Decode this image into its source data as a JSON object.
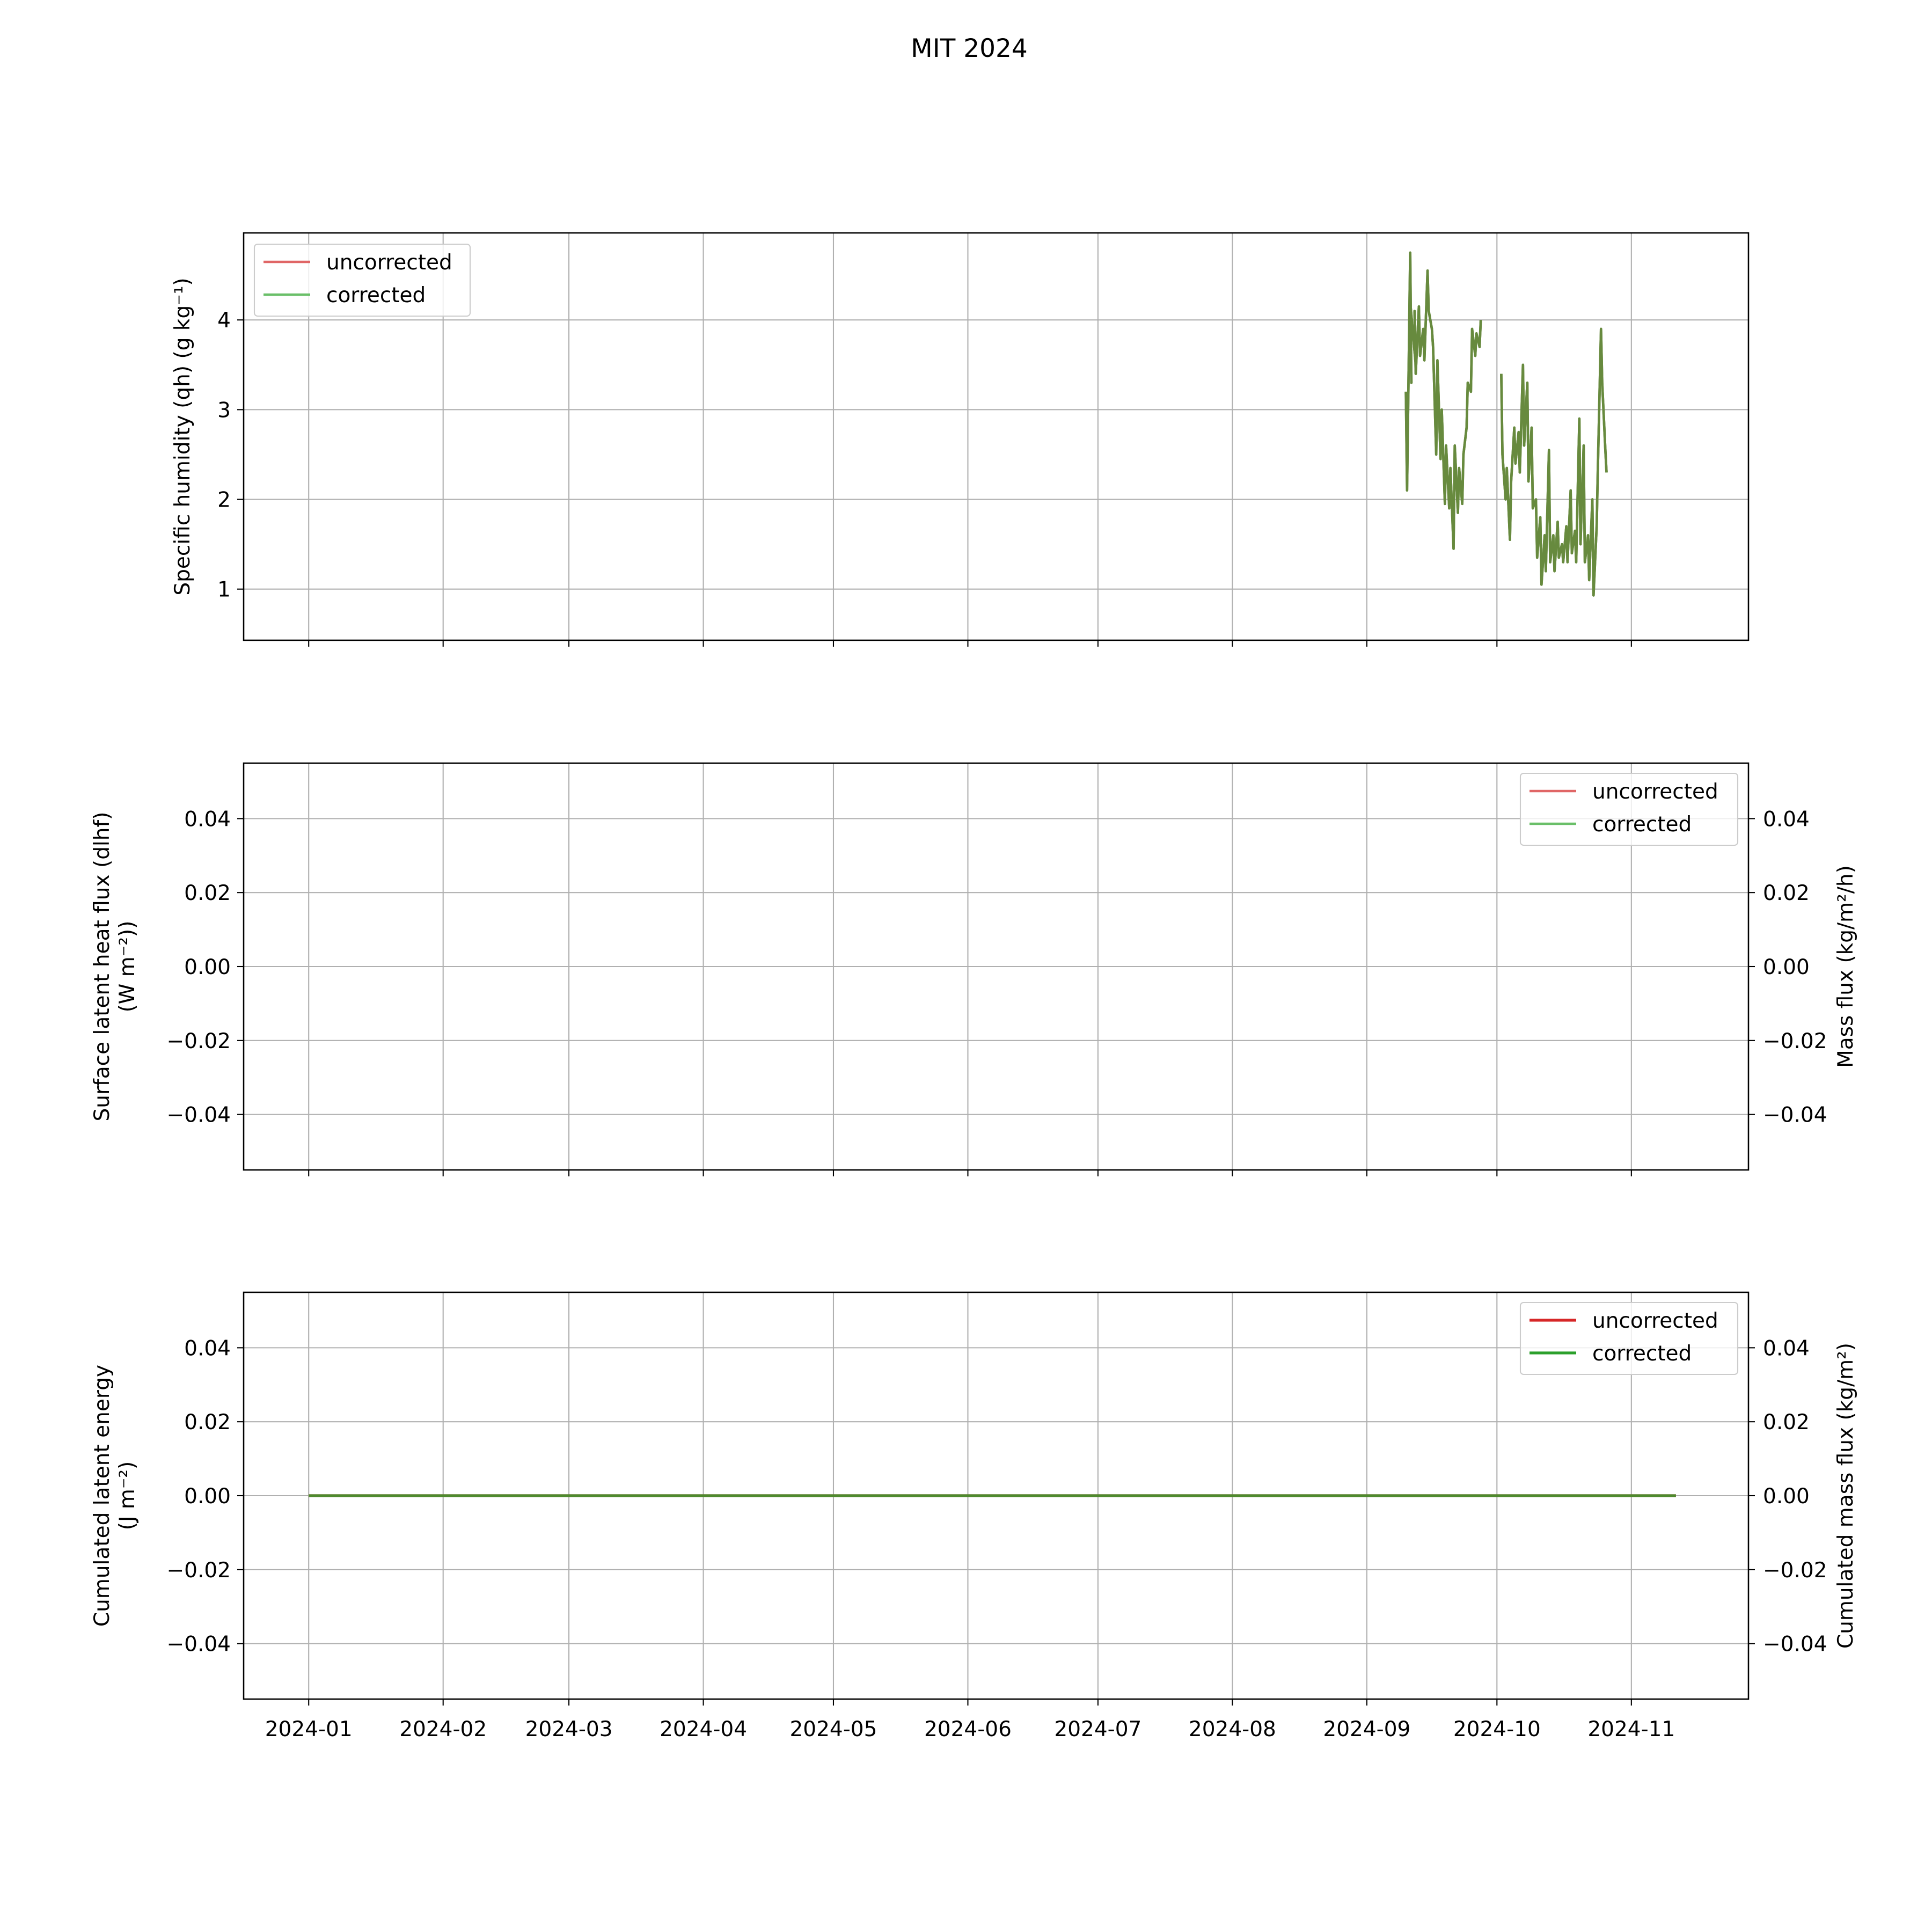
{
  "figure": {
    "title": "MIT 2024"
  },
  "colors": {
    "uncorrected_light": "#e06666",
    "corrected_light": "#6abf69",
    "uncorrected": "#d62728",
    "corrected": "#2ca02c",
    "overlap": "#678a3e"
  },
  "x_ticks": [
    "2024-01",
    "2024-02",
    "2024-03",
    "2024-04",
    "2024-05",
    "2024-06",
    "2024-07",
    "2024-08",
    "2024-09",
    "2024-10",
    "2024-11"
  ],
  "chart_data": [
    {
      "type": "line",
      "panel": "top",
      "ylabel": "Specific humidity (qh) (g kg⁻¹)",
      "ylim": [
        0.43,
        4.97
      ],
      "yticks": [
        1,
        2,
        3,
        4
      ],
      "ytick_labels": [
        "1",
        "2",
        "3",
        "4"
      ],
      "xlim": [
        "2023-12-17",
        "2024-11-28"
      ],
      "grid": true,
      "legend_position": "upper left",
      "series": [
        {
          "name": "uncorrected",
          "color": "#e06666",
          "segments": [
            {
              "x": [
                "2024-09-10",
                "2024-09-10",
                "2024-09-11",
                "2024-09-11",
                "2024-09-11",
                "2024-09-12",
                "2024-09-12",
                "2024-09-12",
                "2024-09-13",
                "2024-09-13",
                "2024-09-14",
                "2024-09-14",
                "2024-09-15",
                "2024-09-15",
                "2024-09-16",
                "2024-09-16",
                "2024-09-17",
                "2024-09-17",
                "2024-09-18",
                "2024-09-18",
                "2024-09-19",
                "2024-09-19",
                "2024-09-20",
                "2024-09-20",
                "2024-09-21",
                "2024-09-21",
                "2024-09-22",
                "2024-09-22",
                "2024-09-23",
                "2024-09-23",
                "2024-09-24",
                "2024-09-24",
                "2024-09-25",
                "2024-09-25",
                "2024-09-26",
                "2024-09-26",
                "2024-09-27",
                "2024-09-27"
              ],
              "y": [
                3.2,
                2.1,
                4.75,
                3.3,
                4.2,
                3.5,
                4.1,
                3.4,
                4.15,
                3.6,
                3.9,
                3.55,
                4.55,
                4.1,
                3.9,
                3.7,
                2.5,
                3.55,
                2.45,
                3.0,
                1.95,
                2.6,
                1.9,
                2.35,
                1.45,
                2.6,
                1.85,
                2.35,
                1.95,
                2.5,
                2.8,
                3.3,
                3.2,
                3.9,
                3.6,
                3.85,
                3.7,
                4.0
              ]
            },
            {
              "x": [
                "2024-10-02",
                "2024-10-02",
                "2024-10-03",
                "2024-10-03",
                "2024-10-04",
                "2024-10-04",
                "2024-10-05",
                "2024-10-05",
                "2024-10-06",
                "2024-10-06",
                "2024-10-07",
                "2024-10-07",
                "2024-10-08",
                "2024-10-08",
                "2024-10-09",
                "2024-10-09",
                "2024-10-10",
                "2024-10-10",
                "2024-10-11",
                "2024-10-11",
                "2024-10-12",
                "2024-10-12",
                "2024-10-13",
                "2024-10-13",
                "2024-10-14",
                "2024-10-14",
                "2024-10-15",
                "2024-10-15",
                "2024-10-16",
                "2024-10-16",
                "2024-10-17",
                "2024-10-17",
                "2024-10-18",
                "2024-10-18",
                "2024-10-19",
                "2024-10-19",
                "2024-10-20",
                "2024-10-20",
                "2024-10-21",
                "2024-10-21",
                "2024-10-22",
                "2024-10-22",
                "2024-10-23",
                "2024-10-23",
                "2024-10-24",
                "2024-10-24",
                "2024-10-25",
                "2024-10-25",
                "2024-10-26",
                "2024-10-26"
              ],
              "y": [
                3.4,
                2.5,
                2.0,
                2.35,
                1.55,
                2.2,
                2.8,
                2.4,
                2.75,
                2.3,
                3.5,
                2.6,
                3.3,
                2.2,
                2.8,
                1.9,
                2.0,
                1.35,
                1.8,
                1.05,
                1.6,
                1.2,
                2.55,
                1.3,
                1.6,
                1.2,
                1.75,
                1.35,
                1.5,
                1.3,
                1.7,
                1.3,
                2.1,
                1.4,
                1.65,
                1.3,
                2.9,
                1.5,
                2.6,
                1.3,
                1.6,
                1.1,
                2.0,
                0.93,
                1.7,
                2.35,
                3.9,
                3.3,
                2.55,
                2.3
              ]
            }
          ]
        },
        {
          "name": "corrected",
          "color": "#6abf69",
          "segments": [
            {
              "x": [
                "2024-09-10",
                "2024-09-10",
                "2024-09-11",
                "2024-09-11",
                "2024-09-11",
                "2024-09-12",
                "2024-09-12",
                "2024-09-12",
                "2024-09-13",
                "2024-09-13",
                "2024-09-14",
                "2024-09-14",
                "2024-09-15",
                "2024-09-15",
                "2024-09-16",
                "2024-09-16",
                "2024-09-17",
                "2024-09-17",
                "2024-09-18",
                "2024-09-18",
                "2024-09-19",
                "2024-09-19",
                "2024-09-20",
                "2024-09-20",
                "2024-09-21",
                "2024-09-21",
                "2024-09-22",
                "2024-09-22",
                "2024-09-23",
                "2024-09-23",
                "2024-09-24",
                "2024-09-24",
                "2024-09-25",
                "2024-09-25",
                "2024-09-26",
                "2024-09-26",
                "2024-09-27",
                "2024-09-27"
              ],
              "y": [
                3.2,
                2.1,
                4.75,
                3.3,
                4.2,
                3.5,
                4.1,
                3.4,
                4.15,
                3.6,
                3.9,
                3.55,
                4.55,
                4.1,
                3.9,
                3.7,
                2.5,
                3.55,
                2.45,
                3.0,
                1.95,
                2.6,
                1.9,
                2.35,
                1.45,
                2.6,
                1.85,
                2.35,
                1.95,
                2.5,
                2.8,
                3.3,
                3.2,
                3.9,
                3.6,
                3.85,
                3.7,
                4.0
              ]
            },
            {
              "x": [
                "2024-10-02",
                "2024-10-02",
                "2024-10-03",
                "2024-10-03",
                "2024-10-04",
                "2024-10-04",
                "2024-10-05",
                "2024-10-05",
                "2024-10-06",
                "2024-10-06",
                "2024-10-07",
                "2024-10-07",
                "2024-10-08",
                "2024-10-08",
                "2024-10-09",
                "2024-10-09",
                "2024-10-10",
                "2024-10-10",
                "2024-10-11",
                "2024-10-11",
                "2024-10-12",
                "2024-10-12",
                "2024-10-13",
                "2024-10-13",
                "2024-10-14",
                "2024-10-14",
                "2024-10-15",
                "2024-10-15",
                "2024-10-16",
                "2024-10-16",
                "2024-10-17",
                "2024-10-17",
                "2024-10-18",
                "2024-10-18",
                "2024-10-19",
                "2024-10-19",
                "2024-10-20",
                "2024-10-20",
                "2024-10-21",
                "2024-10-21",
                "2024-10-22",
                "2024-10-22",
                "2024-10-23",
                "2024-10-23",
                "2024-10-24",
                "2024-10-24",
                "2024-10-25",
                "2024-10-25",
                "2024-10-26",
                "2024-10-26"
              ],
              "y": [
                3.4,
                2.5,
                2.0,
                2.35,
                1.55,
                2.2,
                2.8,
                2.4,
                2.75,
                2.3,
                3.5,
                2.6,
                3.3,
                2.2,
                2.8,
                1.9,
                2.0,
                1.35,
                1.8,
                1.05,
                1.6,
                1.2,
                2.55,
                1.3,
                1.6,
                1.2,
                1.75,
                1.35,
                1.5,
                1.3,
                1.7,
                1.3,
                2.1,
                1.4,
                1.65,
                1.3,
                2.9,
                1.5,
                2.6,
                1.3,
                1.6,
                1.1,
                2.0,
                0.93,
                1.7,
                2.35,
                3.9,
                3.3,
                2.55,
                2.3
              ]
            }
          ]
        }
      ]
    },
    {
      "type": "line",
      "panel": "middle",
      "ylabel": "Surface latent heat flux (dlhf)\n(W m⁻²))",
      "ylabel_right": "Mass flux (kg/m²/h)",
      "ylim": [
        -0.055,
        0.055
      ],
      "yticks": [
        -0.04,
        -0.02,
        0.0,
        0.02,
        0.04
      ],
      "ytick_labels": [
        "−0.04",
        "−0.02",
        "0.00",
        "0.02",
        "0.04"
      ],
      "ytick_labels_right": [
        "−0.04",
        "−0.02",
        "0.00",
        "0.02",
        "0.04"
      ],
      "xlim": [
        "2023-12-17",
        "2024-11-28"
      ],
      "grid": true,
      "legend_position": "upper right",
      "series": [
        {
          "name": "uncorrected",
          "color": "#e06666",
          "segments": []
        },
        {
          "name": "corrected",
          "color": "#6abf69",
          "segments": []
        }
      ]
    },
    {
      "type": "line",
      "panel": "bottom",
      "ylabel": "Cumulated latent energy\n(J m⁻²)",
      "ylabel_right": "Cumulated mass flux (kg/m²)",
      "ylim": [
        -0.055,
        0.055
      ],
      "yticks": [
        -0.04,
        -0.02,
        0.0,
        0.02,
        0.04
      ],
      "ytick_labels": [
        "−0.04",
        "−0.02",
        "0.00",
        "0.02",
        "0.04"
      ],
      "ytick_labels_right": [
        "−0.04",
        "−0.02",
        "0.00",
        "0.02",
        "0.04"
      ],
      "xlim": [
        "2023-12-17",
        "2024-11-28"
      ],
      "grid": true,
      "legend_position": "upper right",
      "series": [
        {
          "name": "uncorrected",
          "color": "#d62728",
          "segments": [
            {
              "x": [
                "2024-01-01",
                "2024-11-11"
              ],
              "y": [
                0,
                0
              ]
            }
          ]
        },
        {
          "name": "corrected",
          "color": "#2ca02c",
          "segments": [
            {
              "x": [
                "2024-01-01",
                "2024-11-11"
              ],
              "y": [
                0,
                0
              ]
            }
          ]
        }
      ]
    }
  ]
}
